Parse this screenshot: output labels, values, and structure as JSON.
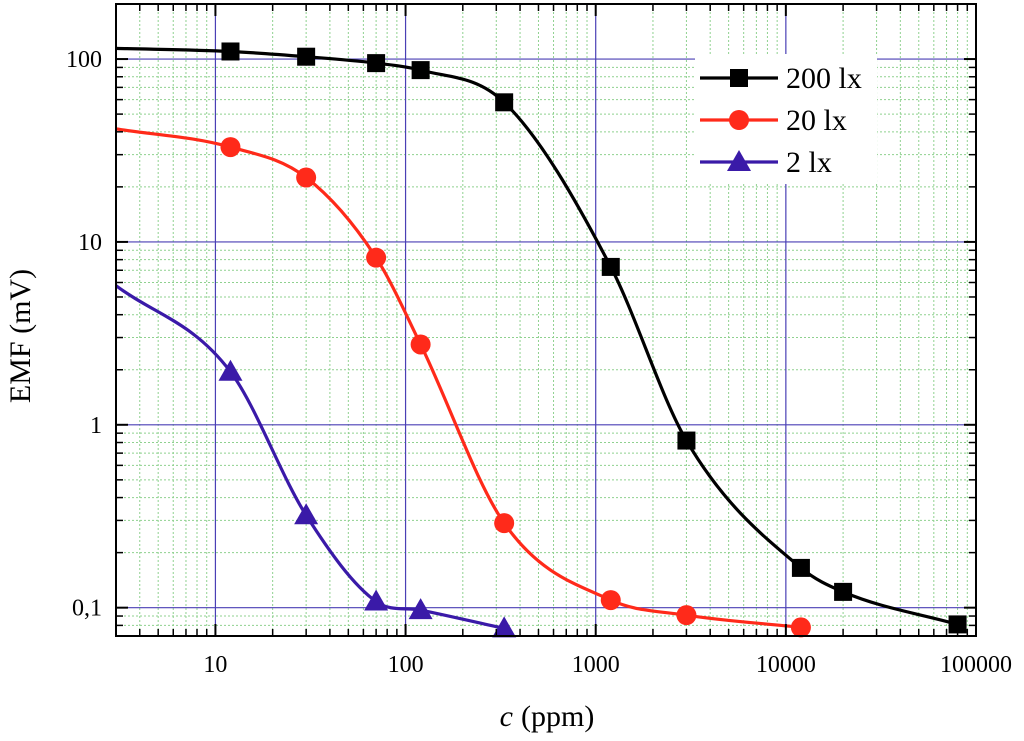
{
  "chart_data": {
    "type": "scatter",
    "title": "",
    "xlabel": "c",
    "xlabel_unit": "(ppm)",
    "ylabel": "EMF (mV)",
    "xscale": "log",
    "yscale": "log",
    "xlim": [
      3,
      100000
    ],
    "ylim": [
      0.07,
      200
    ],
    "grid": true,
    "legend_position": "top-right",
    "x_ticks": [
      {
        "value": 10,
        "label": "10"
      },
      {
        "value": 100,
        "label": "100"
      },
      {
        "value": 1000,
        "label": "1000"
      },
      {
        "value": 10000,
        "label": "10000"
      },
      {
        "value": 100000,
        "label": "100000"
      }
    ],
    "y_ticks": [
      {
        "value": 0.1,
        "label": "0,1"
      },
      {
        "value": 1,
        "label": "1"
      },
      {
        "value": 10,
        "label": "10"
      },
      {
        "value": 100,
        "label": "100"
      }
    ],
    "series": [
      {
        "name": "200 lx",
        "color": "#000000",
        "marker": "square",
        "x": [
          12,
          30,
          70,
          120,
          330,
          1200,
          3000,
          12000,
          20000,
          80000
        ],
        "y": [
          110,
          103,
          95,
          87,
          58,
          7.3,
          0.82,
          0.165,
          0.122,
          0.081
        ]
      },
      {
        "name": "20 lx",
        "color": "#ff2a1a",
        "marker": "circle",
        "x": [
          12,
          30,
          70,
          120,
          330,
          1200,
          3000,
          12000
        ],
        "y": [
          33,
          22.5,
          8.2,
          2.75,
          0.29,
          0.11,
          0.091,
          0.078
        ]
      },
      {
        "name": "2 lx",
        "color": "#3a1aa8",
        "marker": "triangle",
        "x": [
          12,
          30,
          70,
          120,
          330
        ],
        "y": [
          1.95,
          0.32,
          0.108,
          0.097,
          0.077
        ]
      }
    ]
  }
}
